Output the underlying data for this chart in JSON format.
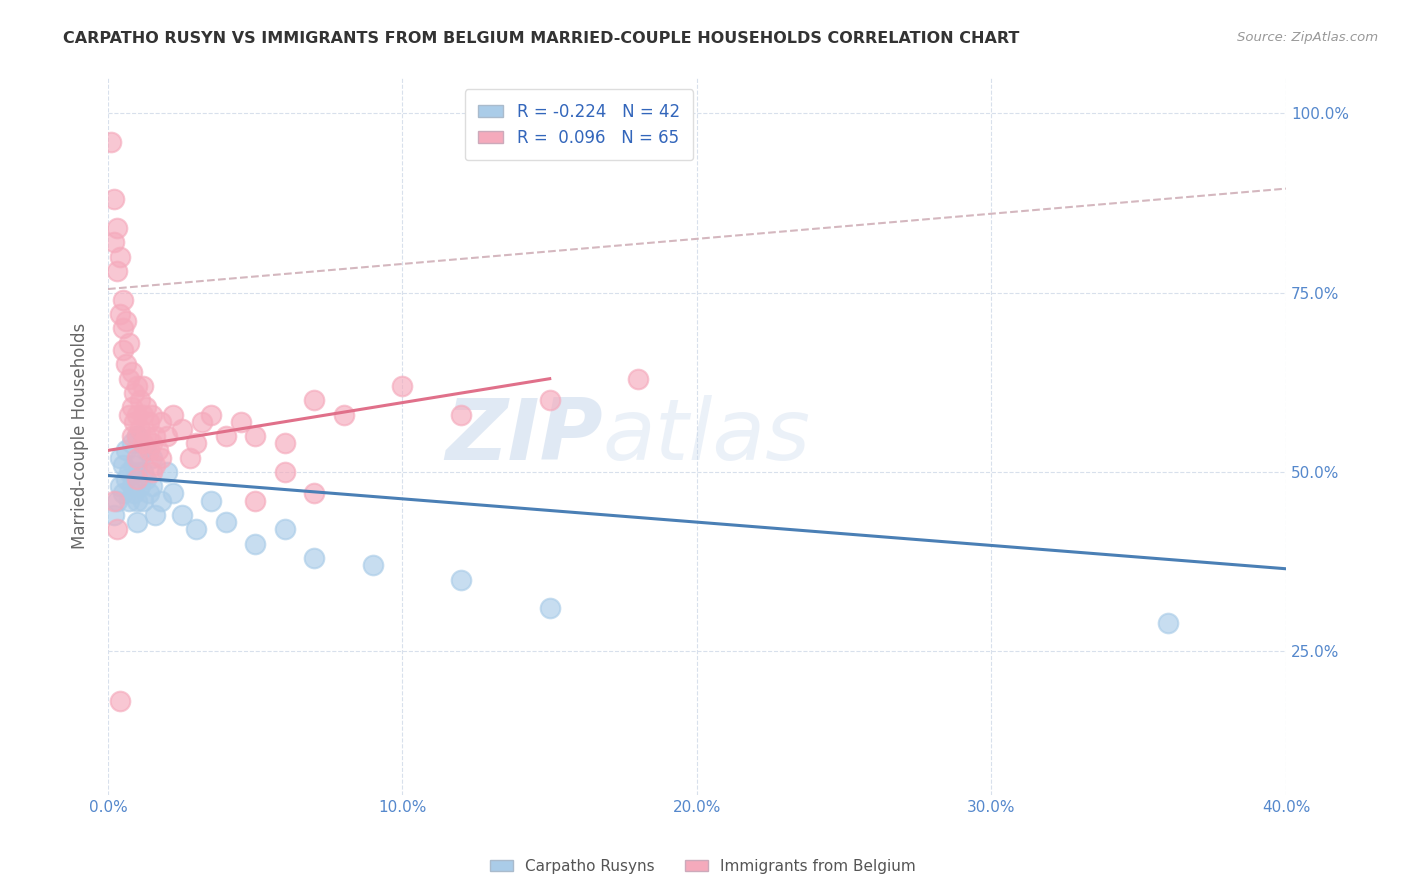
{
  "title": "CARPATHO RUSYN VS IMMIGRANTS FROM BELGIUM MARRIED-COUPLE HOUSEHOLDS CORRELATION CHART",
  "source": "Source: ZipAtlas.com",
  "ylabel": "Married-couple Households",
  "xlim": [
    0.0,
    0.4
  ],
  "ylim": [
    0.05,
    1.05
  ],
  "xticks": [
    0.0,
    0.1,
    0.2,
    0.3,
    0.4
  ],
  "yticks": [
    0.25,
    0.5,
    0.75,
    1.0
  ],
  "ytick_labels": [
    "25.0%",
    "50.0%",
    "75.0%",
    "100.0%"
  ],
  "xtick_labels": [
    "0.0%",
    "10.0%",
    "20.0%",
    "30.0%",
    "40.0%"
  ],
  "blue_R": -0.224,
  "blue_N": 42,
  "pink_R": 0.096,
  "pink_N": 65,
  "blue_color": "#adc8e8",
  "pink_color": "#f5aaб8",
  "blue_line_color": "#4a7fb5",
  "pink_line_color": "#e0708a",
  "gray_dash_color": "#d0b0b8",
  "legend_label_blue": "Carpatho Rusyns",
  "legend_label_pink": "Immigrants from Belgium",
  "watermark_zip": "ZIP",
  "watermark_atlas": "atlas",
  "background_color": "#ffffff",
  "grid_color": "#d8e0ec",
  "title_color": "#333333",
  "axis_label_color": "#666666",
  "tick_label_color": "#5588cc",
  "blue_scatter_x": [
    0.002,
    0.003,
    0.004,
    0.004,
    0.005,
    0.005,
    0.006,
    0.006,
    0.007,
    0.007,
    0.008,
    0.008,
    0.009,
    0.009,
    0.01,
    0.01,
    0.01,
    0.01,
    0.011,
    0.011,
    0.012,
    0.012,
    0.013,
    0.013,
    0.014,
    0.015,
    0.015,
    0.016,
    0.018,
    0.02,
    0.022,
    0.025,
    0.03,
    0.035,
    0.04,
    0.05,
    0.06,
    0.07,
    0.09,
    0.12,
    0.15,
    0.36
  ],
  "blue_scatter_y": [
    0.44,
    0.46,
    0.52,
    0.48,
    0.51,
    0.47,
    0.53,
    0.49,
    0.5,
    0.46,
    0.54,
    0.48,
    0.51,
    0.47,
    0.55,
    0.5,
    0.46,
    0.43,
    0.52,
    0.48,
    0.5,
    0.46,
    0.53,
    0.49,
    0.47,
    0.52,
    0.48,
    0.44,
    0.46,
    0.5,
    0.47,
    0.44,
    0.42,
    0.46,
    0.43,
    0.4,
    0.42,
    0.38,
    0.37,
    0.35,
    0.31,
    0.29
  ],
  "pink_scatter_x": [
    0.001,
    0.002,
    0.002,
    0.003,
    0.003,
    0.004,
    0.004,
    0.005,
    0.005,
    0.005,
    0.006,
    0.006,
    0.007,
    0.007,
    0.007,
    0.008,
    0.008,
    0.008,
    0.009,
    0.009,
    0.01,
    0.01,
    0.01,
    0.01,
    0.01,
    0.011,
    0.011,
    0.012,
    0.012,
    0.012,
    0.013,
    0.013,
    0.014,
    0.014,
    0.015,
    0.015,
    0.015,
    0.016,
    0.016,
    0.017,
    0.018,
    0.018,
    0.02,
    0.022,
    0.025,
    0.028,
    0.03,
    0.032,
    0.035,
    0.04,
    0.045,
    0.05,
    0.06,
    0.07,
    0.08,
    0.1,
    0.12,
    0.15,
    0.18,
    0.002,
    0.003,
    0.004,
    0.05,
    0.06,
    0.07
  ],
  "pink_scatter_y": [
    0.96,
    0.88,
    0.82,
    0.84,
    0.78,
    0.8,
    0.72,
    0.74,
    0.7,
    0.67,
    0.71,
    0.65,
    0.68,
    0.63,
    0.58,
    0.64,
    0.59,
    0.55,
    0.61,
    0.57,
    0.62,
    0.58,
    0.55,
    0.52,
    0.49,
    0.6,
    0.56,
    0.62,
    0.58,
    0.54,
    0.59,
    0.55,
    0.57,
    0.53,
    0.58,
    0.54,
    0.5,
    0.55,
    0.51,
    0.53,
    0.57,
    0.52,
    0.55,
    0.58,
    0.56,
    0.52,
    0.54,
    0.57,
    0.58,
    0.55,
    0.57,
    0.55,
    0.54,
    0.6,
    0.58,
    0.62,
    0.58,
    0.6,
    0.63,
    0.46,
    0.42,
    0.18,
    0.46,
    0.5,
    0.47
  ],
  "blue_line_x0": 0.0,
  "blue_line_y0": 0.495,
  "blue_line_x1": 0.4,
  "blue_line_y1": 0.365,
  "pink_line_x0": 0.0,
  "pink_line_y0": 0.53,
  "pink_line_x1": 0.15,
  "pink_line_y1": 0.63,
  "gray_line_x0": 0.0,
  "gray_line_y0": 0.755,
  "gray_line_x1": 0.4,
  "gray_line_y1": 0.895
}
